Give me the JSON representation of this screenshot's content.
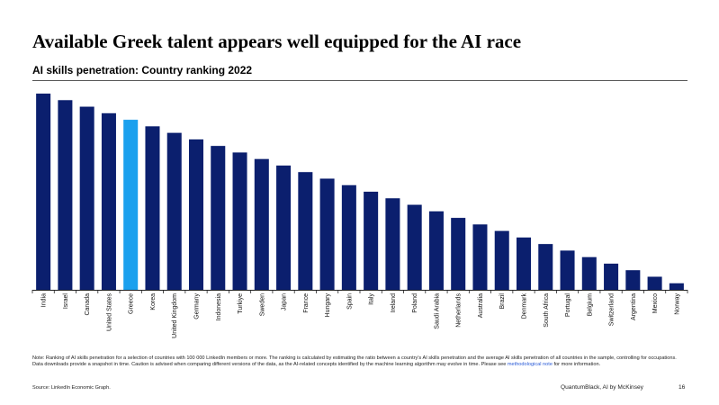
{
  "header": {
    "title": "Available Greek talent appears well equipped for the AI race",
    "subtitle": "AI skills penetration: Country ranking 2022"
  },
  "chart_data": {
    "type": "bar",
    "title": "",
    "xlabel": "",
    "ylabel": "",
    "ylim": [
      0,
      30
    ],
    "grid": false,
    "legend": "none",
    "categories": [
      "India",
      "Israel",
      "Canada",
      "United States",
      "Greece",
      "Korea",
      "United Kingdom",
      "Germany",
      "Indonesia",
      "Turkiye",
      "Sweden",
      "Japan",
      "France",
      "Hungary",
      "Spain",
      "Italy",
      "Ireland",
      "Poland",
      "Saudi Arabia",
      "Netherlands",
      "Australia",
      "Brazil",
      "Denmark",
      "South Africa",
      "Portugal",
      "Belgium",
      "Switzerland",
      "Argentina",
      "Mexico",
      "Norway"
    ],
    "values": [
      30,
      29,
      28,
      27,
      26,
      25,
      24,
      23,
      22,
      21,
      20,
      19,
      18,
      17,
      16,
      15,
      14,
      13,
      12,
      11,
      10,
      9,
      8,
      7,
      6,
      5,
      4,
      3,
      2,
      1
    ],
    "value_note": "Rank-ordered bars; no axis or data labels are printed, values reflect relative ranking.",
    "colors": {
      "default": "#0b1f6e",
      "highlight": "#1aa0ee",
      "axis": "#222222"
    },
    "highlight": "Greece"
  },
  "footer": {
    "note_before_link": "Note: Ranking of AI skills penetration for a selection of countries with 100 000 LinkedIn members or more. The ranking is calculated by estimating the ratio between a country's AI skills penetration and the average AI skills penetration of all countries in the sample, controlling for occupations. Data downloads provide a snapshot in time. Caution is advised when comparing different versions of the data, as the AI-related concepts identified by the machine learning algorithm may evolve in time. Please see ",
    "note_link": "methodological note",
    "note_after_link": " for more information.",
    "source": "Source: LinkedIn Economic Graph.",
    "brand": "QuantumBlack, AI by McKinsey",
    "page_number": "16"
  }
}
